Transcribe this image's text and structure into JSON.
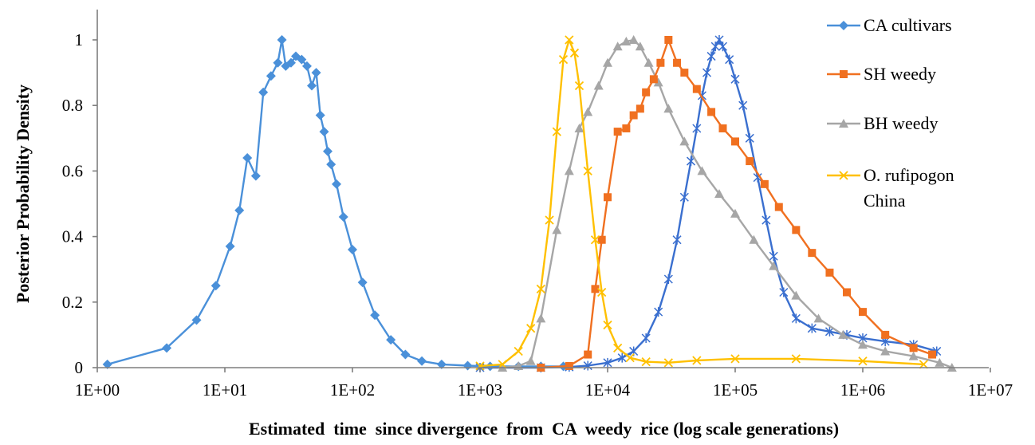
{
  "chart_data": {
    "type": "line",
    "title": "",
    "xlabel": "Estimated  time  since divergence  from  CA  weedy  rice (log scale generations)",
    "ylabel": "Posterior Probability Density",
    "x_scale": "log10",
    "xlim": [
      1,
      10000000
    ],
    "ylim": [
      0,
      1.0
    ],
    "x_ticks": [
      "1E+00",
      "1E+01",
      "1E+02",
      "1E+03",
      "1E+04",
      "1E+05",
      "1E+06",
      "1E+07"
    ],
    "y_ticks": [
      "0",
      "0.2",
      "0.4",
      "0.6",
      "0.8",
      "1"
    ],
    "grid": false,
    "legend_position": "right",
    "series": [
      {
        "name": "CA cultivars",
        "color": "#4a90d9",
        "marker": "diamond",
        "x": [
          1.2,
          3.5,
          6,
          8.5,
          11,
          13,
          15,
          17.5,
          20,
          23,
          26,
          28,
          30,
          33,
          36,
          40,
          44,
          48,
          52,
          56,
          60,
          64,
          68,
          75,
          85,
          100,
          120,
          150,
          200,
          260,
          350,
          500,
          800,
          1200,
          2000,
          3000,
          4500
        ],
        "y": [
          0.01,
          0.06,
          0.145,
          0.25,
          0.37,
          0.48,
          0.64,
          0.585,
          0.84,
          0.89,
          0.93,
          1.0,
          0.92,
          0.93,
          0.95,
          0.94,
          0.92,
          0.86,
          0.9,
          0.77,
          0.72,
          0.66,
          0.62,
          0.56,
          0.46,
          0.36,
          0.26,
          0.16,
          0.085,
          0.04,
          0.02,
          0.01,
          0.006,
          0.004,
          0.004,
          0.004,
          0.004
        ]
      },
      {
        "name": "SH weedy",
        "color": "#f07020",
        "marker": "square",
        "x": [
          3000,
          5000,
          7000,
          8000,
          9000,
          10000,
          12000,
          14000,
          16000,
          18000,
          20000,
          23000,
          26000,
          30000,
          35000,
          40000,
          50000,
          65000,
          80000,
          100000,
          130000,
          170000,
          220000,
          300000,
          400000,
          550000,
          750000,
          1000000,
          1500000,
          2500000,
          3500000
        ],
        "y": [
          0.0,
          0.005,
          0.04,
          0.24,
          0.39,
          0.52,
          0.72,
          0.73,
          0.77,
          0.79,
          0.84,
          0.88,
          0.93,
          1.0,
          0.93,
          0.9,
          0.85,
          0.78,
          0.73,
          0.69,
          0.63,
          0.56,
          0.49,
          0.42,
          0.35,
          0.29,
          0.23,
          0.17,
          0.1,
          0.06,
          0.04
        ]
      },
      {
        "name": "BH weedy",
        "color": "#a6a6a6",
        "marker": "triangle",
        "x": [
          1500,
          2000,
          2500,
          3000,
          4000,
          5000,
          6000,
          7000,
          8500,
          10000,
          12000,
          14000,
          16000,
          18000,
          21000,
          25000,
          30000,
          40000,
          55000,
          75000,
          100000,
          140000,
          200000,
          300000,
          450000,
          700000,
          1000000,
          1500000,
          2500000,
          4000000,
          5000000
        ],
        "y": [
          0.0,
          0.005,
          0.02,
          0.15,
          0.42,
          0.6,
          0.73,
          0.78,
          0.86,
          0.93,
          0.98,
          0.995,
          1.0,
          0.98,
          0.93,
          0.87,
          0.79,
          0.69,
          0.6,
          0.53,
          0.47,
          0.39,
          0.31,
          0.22,
          0.15,
          0.1,
          0.07,
          0.05,
          0.035,
          0.015,
          0.0
        ]
      },
      {
        "name": "O. rufipogon China",
        "color": "#ffc000",
        "marker": "x",
        "x": [
          1000,
          1500,
          2000,
          2500,
          3000,
          3500,
          4000,
          4500,
          5000,
          5500,
          6000,
          7000,
          8000,
          9000,
          10000,
          12000,
          15000,
          20000,
          30000,
          50000,
          100000,
          300000,
          1000000,
          3000000
        ],
        "y": [
          0.005,
          0.01,
          0.05,
          0.12,
          0.24,
          0.45,
          0.72,
          0.94,
          1.0,
          0.96,
          0.86,
          0.6,
          0.39,
          0.23,
          0.13,
          0.06,
          0.03,
          0.018,
          0.015,
          0.022,
          0.027,
          0.027,
          0.02,
          0.01
        ]
      },
      {
        "name": "",
        "color": "#3a6fcf",
        "marker": "asterisk",
        "x": [
          1000,
          3000,
          5000,
          7000,
          10000,
          13000,
          16000,
          20000,
          25000,
          30000,
          35000,
          40000,
          45000,
          50000,
          55000,
          60000,
          65000,
          70000,
          75000,
          80000,
          90000,
          100000,
          115000,
          130000,
          150000,
          175000,
          200000,
          240000,
          300000,
          400000,
          550000,
          750000,
          1000000,
          1500000,
          2500000,
          3800000
        ],
        "y": [
          0.0,
          0.0,
          0.002,
          0.006,
          0.015,
          0.03,
          0.05,
          0.09,
          0.17,
          0.27,
          0.39,
          0.52,
          0.63,
          0.73,
          0.83,
          0.9,
          0.95,
          0.98,
          1.0,
          0.98,
          0.94,
          0.88,
          0.8,
          0.7,
          0.58,
          0.45,
          0.34,
          0.23,
          0.15,
          0.12,
          0.11,
          0.1,
          0.09,
          0.08,
          0.07,
          0.05
        ]
      }
    ]
  }
}
